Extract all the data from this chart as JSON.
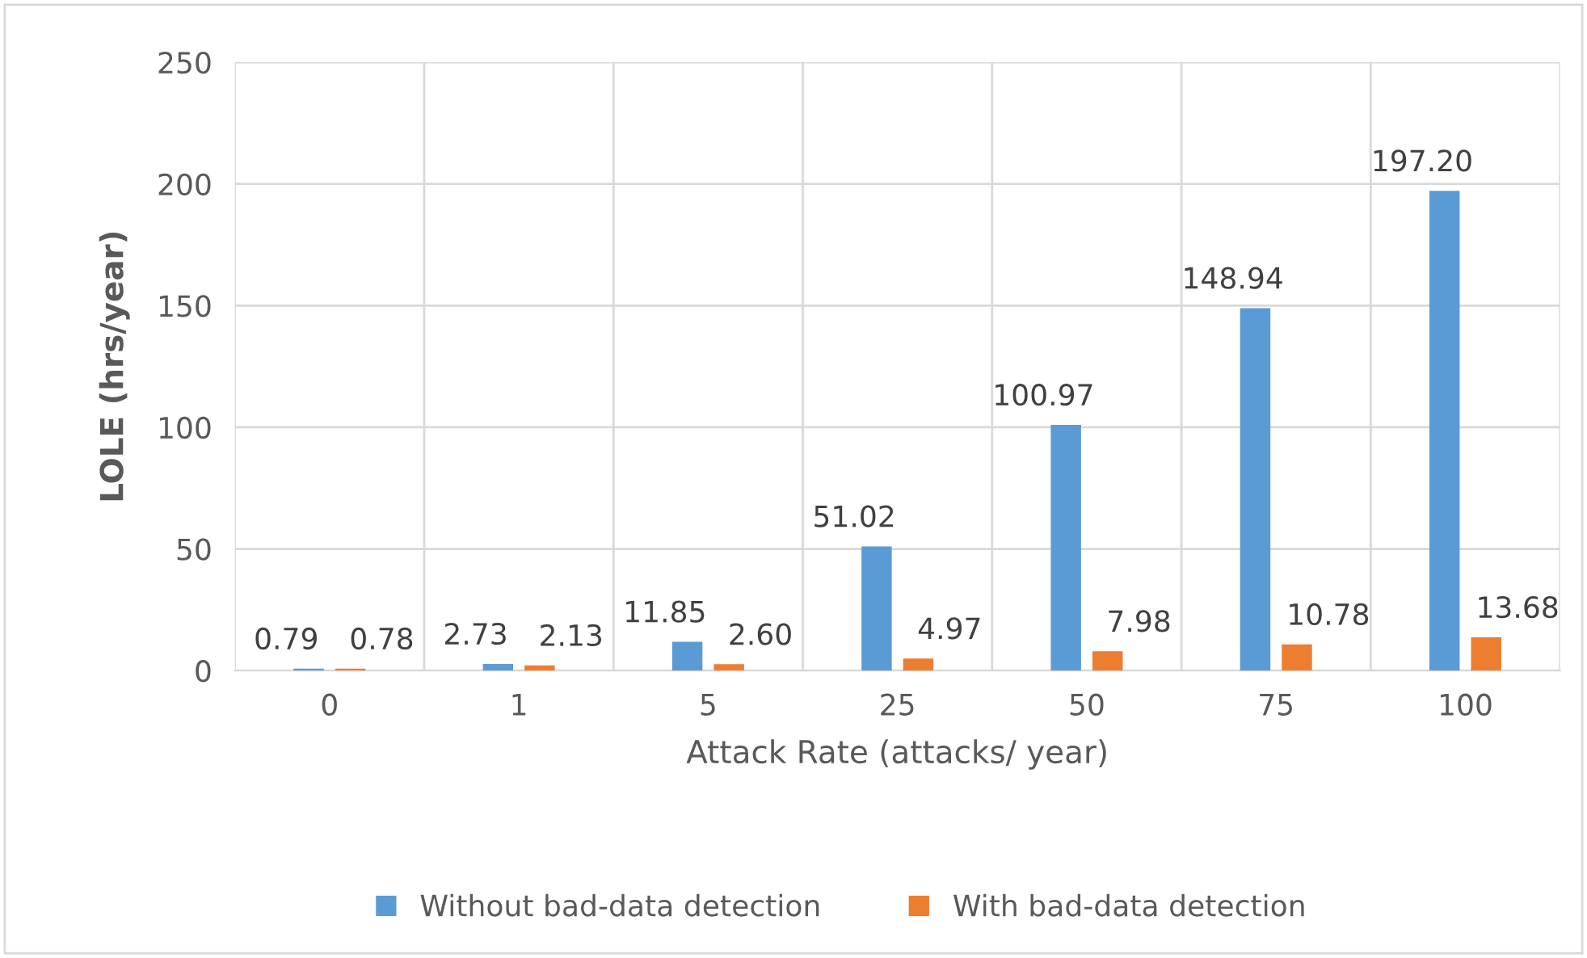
{
  "chart_data": {
    "type": "bar",
    "xlabel": "Attack Rate (attacks/ year)",
    "ylabel": "LOLE (hrs/year)",
    "categories": [
      "0",
      "1",
      "5",
      "25",
      "50",
      "75",
      "100"
    ],
    "series": [
      {
        "name": "Without bad-data detection",
        "color": "#5b9bd5",
        "values": [
          0.79,
          2.73,
          11.85,
          51.02,
          100.97,
          148.94,
          197.2
        ],
        "value_labels": [
          "0.79",
          "2.73",
          "11.85",
          "51.02",
          "100.97",
          "148.94",
          "197.20"
        ]
      },
      {
        "name": "With bad-data detection",
        "color": "#ed7d31",
        "values": [
          0.78,
          2.13,
          2.6,
          4.97,
          7.98,
          10.78,
          13.68
        ],
        "value_labels": [
          "0.78",
          "2.13",
          "2.60",
          "4.97",
          "7.98",
          "10.78",
          "13.68"
        ]
      }
    ],
    "ylim": [
      0,
      250
    ],
    "yticks": [
      0,
      50,
      100,
      150,
      200,
      250
    ],
    "grid": true,
    "legend": "bottom"
  }
}
